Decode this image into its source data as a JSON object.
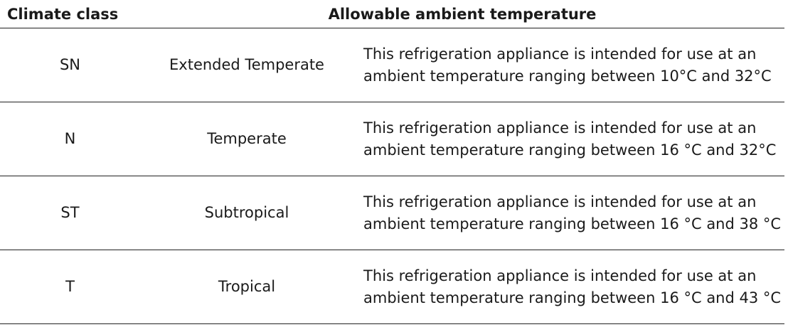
{
  "headers": {
    "climate_class": "Climate class",
    "allowable_temp": "Allowable ambient temperature"
  },
  "rows": [
    {
      "code": "SN",
      "name": "Extended Temperate",
      "description": "This refrigeration appliance is intended for use at an ambient temperature ranging between 10°C and 32°C"
    },
    {
      "code": "N",
      "name": "Temperate",
      "description": "This refrigeration appliance is intended for use at an ambient temperature ranging between 16 °C and 32°C"
    },
    {
      "code": "ST",
      "name": "Subtropical",
      "description": "This refrigeration appliance is intended for use at an ambient temperature ranging between 16 °C and 38 °C"
    },
    {
      "code": "T",
      "name": "Tropical",
      "description": "This refrigeration appliance is intended for use at an ambient temperature ranging between 16 °C and 43 °C"
    }
  ]
}
